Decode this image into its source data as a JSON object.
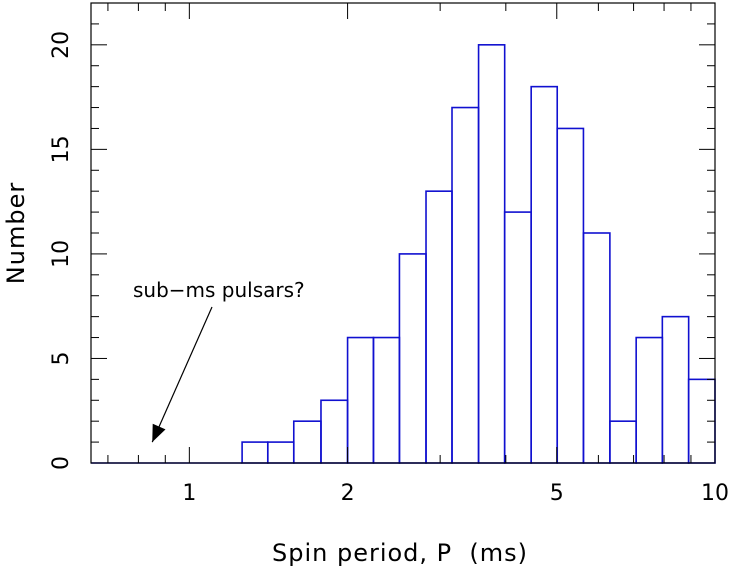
{
  "chart_data": {
    "type": "bar",
    "xlabel": "Spin period, P  (ms)",
    "ylabel": "Number",
    "xscale": "log",
    "xlim": [
      0.65,
      10
    ],
    "ylim": [
      0,
      22
    ],
    "grid": false,
    "bar_color": "#1010d0",
    "x_tick_labels": [
      "1",
      "2",
      "5",
      "10"
    ],
    "y_tick_labels": [
      "0",
      "5",
      "10",
      "15",
      "20"
    ],
    "x_ticks": [
      1,
      2,
      5,
      10
    ],
    "y_ticks": [
      0,
      5,
      10,
      15,
      20
    ],
    "bins": [
      {
        "from": 0.65,
        "to": 1.26,
        "count": 0
      },
      {
        "from": 1.26,
        "to": 1.41,
        "count": 1
      },
      {
        "from": 1.41,
        "to": 1.58,
        "count": 1
      },
      {
        "from": 1.58,
        "to": 1.78,
        "count": 2
      },
      {
        "from": 1.78,
        "to": 2.0,
        "count": 3
      },
      {
        "from": 2.0,
        "to": 2.24,
        "count": 6
      },
      {
        "from": 2.24,
        "to": 2.51,
        "count": 6
      },
      {
        "from": 2.51,
        "to": 2.82,
        "count": 10
      },
      {
        "from": 2.82,
        "to": 3.16,
        "count": 13
      },
      {
        "from": 3.16,
        "to": 3.55,
        "count": 17
      },
      {
        "from": 3.55,
        "to": 3.98,
        "count": 20
      },
      {
        "from": 3.98,
        "to": 4.47,
        "count": 12
      },
      {
        "from": 4.47,
        "to": 5.01,
        "count": 18
      },
      {
        "from": 5.01,
        "to": 5.62,
        "count": 16
      },
      {
        "from": 5.62,
        "to": 6.31,
        "count": 11
      },
      {
        "from": 6.31,
        "to": 7.08,
        "count": 2
      },
      {
        "from": 7.08,
        "to": 7.94,
        "count": 6
      },
      {
        "from": 7.94,
        "to": 8.91,
        "count": 7
      },
      {
        "from": 8.91,
        "to": 10.0,
        "count": 4
      }
    ],
    "annotation": {
      "text": "sub−ms pulsars?",
      "arrow_to": {
        "x": 0.85,
        "y": 1
      }
    }
  }
}
